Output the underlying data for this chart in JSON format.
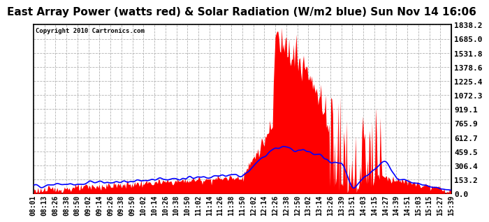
{
  "title": "East Array Power (watts red) & Solar Radiation (W/m2 blue) Sun Nov 14 16:06",
  "copyright": "Copyright 2010 Cartronics.com",
  "ylabel_right": [
    "1838.2",
    "1685.0",
    "1531.8",
    "1378.6",
    "1225.4",
    "1072.3",
    "919.1",
    "765.9",
    "612.7",
    "459.5",
    "306.4",
    "153.2",
    "0.0"
  ],
  "ytick_vals": [
    1838.2,
    1685.0,
    1531.8,
    1378.6,
    1225.4,
    1072.3,
    919.1,
    765.9,
    612.7,
    459.5,
    306.4,
    153.2,
    0.0
  ],
  "ymax": 1838.2,
  "ymin": 0.0,
  "xtick_labels": [
    "08:01",
    "08:13",
    "08:26",
    "08:38",
    "08:50",
    "09:02",
    "09:14",
    "09:26",
    "09:38",
    "09:50",
    "10:02",
    "10:14",
    "10:26",
    "10:38",
    "10:50",
    "11:02",
    "11:14",
    "11:26",
    "11:38",
    "11:50",
    "12:02",
    "12:14",
    "12:26",
    "12:38",
    "12:50",
    "13:02",
    "13:14",
    "13:26",
    "13:39",
    "13:51",
    "14:03",
    "14:15",
    "14:27",
    "14:39",
    "14:51",
    "15:03",
    "15:15",
    "15:27",
    "15:39"
  ],
  "background_color": "#ffffff",
  "plot_bg_color": "#ffffff",
  "grid_color": "#aaaaaa",
  "title_fontsize": 11,
  "red_color": "#ff0000",
  "blue_color": "#0000ff"
}
